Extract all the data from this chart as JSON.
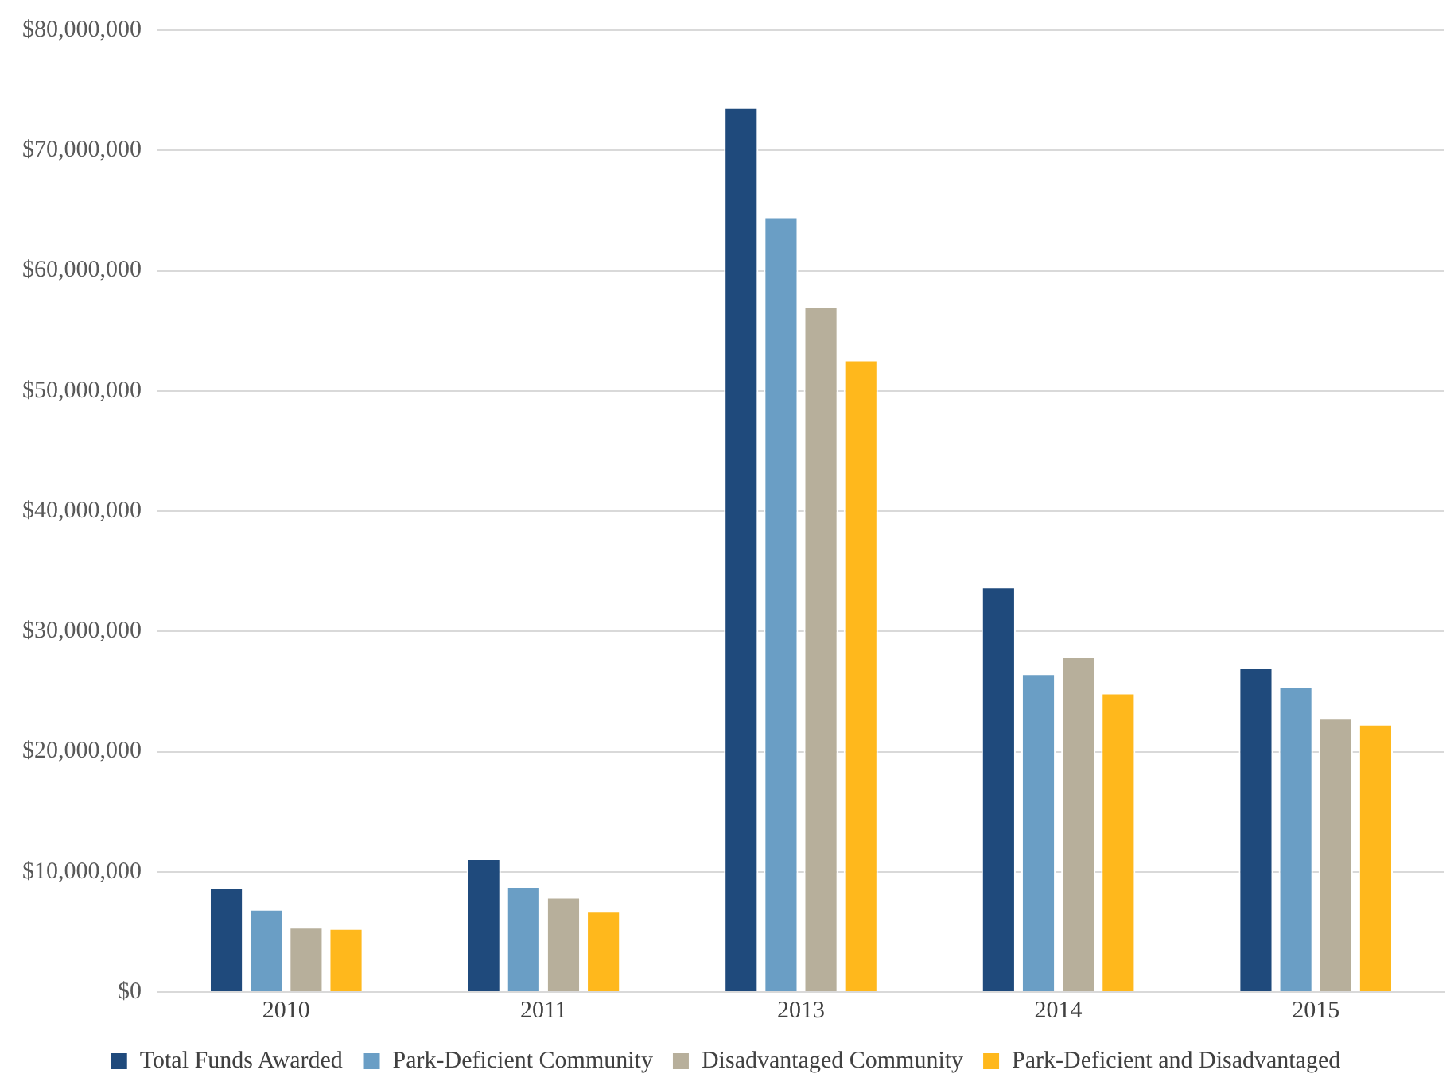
{
  "chart_data": {
    "type": "bar",
    "categories": [
      "2010",
      "2011",
      "2013",
      "2014",
      "2015"
    ],
    "series": [
      {
        "name": "Total Funds Awarded",
        "color": "#1f4a7c",
        "values": [
          8700000,
          11100000,
          73600000,
          33700000,
          27000000
        ]
      },
      {
        "name": "Park-Deficient Community",
        "color": "#6a9ec5",
        "values": [
          6900000,
          8800000,
          64500000,
          26500000,
          25400000
        ]
      },
      {
        "name": "Disadvantaged Community",
        "color": "#b7af9b",
        "values": [
          5400000,
          7900000,
          57000000,
          27900000,
          22800000
        ]
      },
      {
        "name": "Park-Deficient and Disadvantaged",
        "color": "#ffb81c",
        "values": [
          5300000,
          6800000,
          52600000,
          24900000,
          22300000
        ]
      }
    ],
    "ylim": [
      0,
      80000000
    ],
    "yticks": [
      {
        "value": 0,
        "label": "$0"
      },
      {
        "value": 10000000,
        "label": "$10,000,000"
      },
      {
        "value": 20000000,
        "label": "$20,000,000"
      },
      {
        "value": 30000000,
        "label": "$30,000,000"
      },
      {
        "value": 40000000,
        "label": "$40,000,000"
      },
      {
        "value": 50000000,
        "label": "$50,000,000"
      },
      {
        "value": 60000000,
        "label": "$60,000,000"
      },
      {
        "value": 70000000,
        "label": "$70,000,000"
      },
      {
        "value": 80000000,
        "label": "$80,000,000"
      }
    ],
    "grid": "y",
    "legend": "bottom"
  }
}
